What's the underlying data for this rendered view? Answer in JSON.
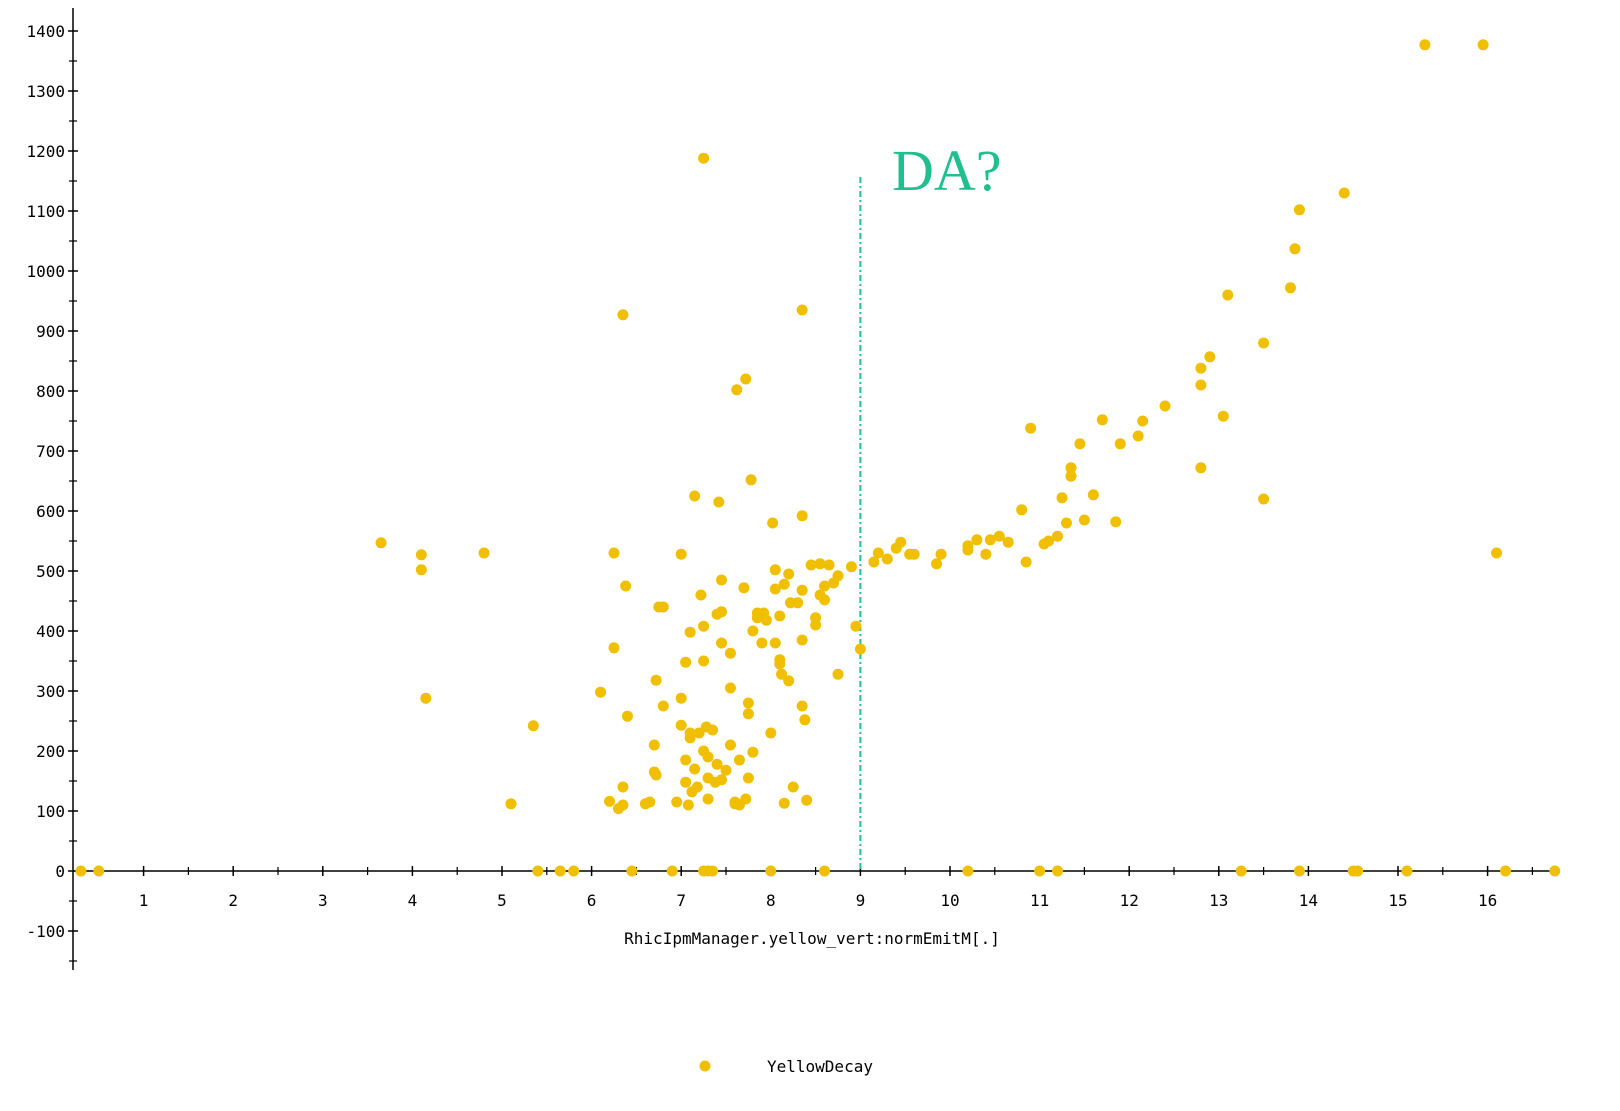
{
  "chart_data": {
    "type": "scatter",
    "title": "",
    "xlabel": "RhicIpmManager.yellow_vert:normEmitM[.]",
    "ylabel": "",
    "xlim": [
      0.1,
      16.8
    ],
    "ylim": [
      -150,
      1430
    ],
    "x_ticks": [
      1,
      2,
      3,
      4,
      5,
      6,
      7,
      8,
      9,
      10,
      11,
      12,
      13,
      14,
      15,
      16
    ],
    "y_ticks": [
      -100,
      0,
      100,
      200,
      300,
      400,
      500,
      600,
      700,
      800,
      900,
      1000,
      1100,
      1200,
      1300,
      1400
    ],
    "grid": false,
    "legend_position": "bottom-center",
    "annotation": {
      "text": "DA?",
      "x": 9,
      "color": "#1fbf8f"
    },
    "series": [
      {
        "name": "YellowDecay",
        "color": "#f0c000",
        "points": [
          [
            0.3,
            0
          ],
          [
            0.5,
            0
          ],
          [
            5.4,
            0
          ],
          [
            5.65,
            0
          ],
          [
            5.8,
            0
          ],
          [
            6.45,
            0
          ],
          [
            6.9,
            0
          ],
          [
            7.25,
            0
          ],
          [
            7.3,
            0
          ],
          [
            7.35,
            0
          ],
          [
            8.0,
            0
          ],
          [
            8.6,
            0
          ],
          [
            10.2,
            0
          ],
          [
            11.0,
            0
          ],
          [
            11.2,
            0
          ],
          [
            13.25,
            0
          ],
          [
            13.9,
            0
          ],
          [
            14.5,
            0
          ],
          [
            14.55,
            0
          ],
          [
            15.1,
            0
          ],
          [
            16.2,
            0
          ],
          [
            16.75,
            0
          ],
          [
            3.65,
            547
          ],
          [
            4.1,
            527
          ],
          [
            4.1,
            502
          ],
          [
            4.15,
            288
          ],
          [
            4.8,
            530
          ],
          [
            5.1,
            112
          ],
          [
            5.35,
            242
          ],
          [
            6.1,
            298
          ],
          [
            6.2,
            116
          ],
          [
            6.25,
            530
          ],
          [
            6.25,
            372
          ],
          [
            6.3,
            104
          ],
          [
            6.35,
            927
          ],
          [
            6.35,
            110
          ],
          [
            6.35,
            140
          ],
          [
            6.38,
            475
          ],
          [
            6.4,
            258
          ],
          [
            6.6,
            112
          ],
          [
            6.65,
            115
          ],
          [
            6.7,
            210
          ],
          [
            6.7,
            165
          ],
          [
            6.72,
            160
          ],
          [
            6.72,
            318
          ],
          [
            6.75,
            440
          ],
          [
            6.8,
            440
          ],
          [
            6.8,
            275
          ],
          [
            6.95,
            115
          ],
          [
            7.0,
            528
          ],
          [
            7.0,
            288
          ],
          [
            7.0,
            243
          ],
          [
            7.05,
            348
          ],
          [
            7.05,
            185
          ],
          [
            7.05,
            148
          ],
          [
            7.08,
            110
          ],
          [
            7.1,
            230
          ],
          [
            7.1,
            222
          ],
          [
            7.1,
            398
          ],
          [
            7.12,
            132
          ],
          [
            7.15,
            170
          ],
          [
            7.15,
            625
          ],
          [
            7.18,
            140
          ],
          [
            7.2,
            230
          ],
          [
            7.22,
            460
          ],
          [
            7.25,
            1188
          ],
          [
            7.25,
            350
          ],
          [
            7.25,
            408
          ],
          [
            7.25,
            200
          ],
          [
            7.28,
            240
          ],
          [
            7.3,
            120
          ],
          [
            7.3,
            190
          ],
          [
            7.3,
            155
          ],
          [
            7.35,
            235
          ],
          [
            7.38,
            148
          ],
          [
            7.4,
            178
          ],
          [
            7.4,
            428
          ],
          [
            7.42,
            615
          ],
          [
            7.45,
            485
          ],
          [
            7.45,
            380
          ],
          [
            7.45,
            432
          ],
          [
            7.45,
            152
          ],
          [
            7.5,
            168
          ],
          [
            7.55,
            363
          ],
          [
            7.55,
            305
          ],
          [
            7.55,
            210
          ],
          [
            7.6,
            115
          ],
          [
            7.6,
            112
          ],
          [
            7.62,
            802
          ],
          [
            7.65,
            110
          ],
          [
            7.65,
            185
          ],
          [
            7.7,
            472
          ],
          [
            7.72,
            820
          ],
          [
            7.72,
            120
          ],
          [
            7.75,
            262
          ],
          [
            7.75,
            280
          ],
          [
            7.75,
            155
          ],
          [
            7.78,
            652
          ],
          [
            7.8,
            400
          ],
          [
            7.8,
            198
          ],
          [
            7.85,
            430
          ],
          [
            7.85,
            422
          ],
          [
            7.9,
            380
          ],
          [
            7.92,
            430
          ],
          [
            7.95,
            418
          ],
          [
            8.0,
            230
          ],
          [
            8.02,
            580
          ],
          [
            8.05,
            380
          ],
          [
            8.05,
            502
          ],
          [
            8.05,
            470
          ],
          [
            8.1,
            425
          ],
          [
            8.1,
            352
          ],
          [
            8.1,
            345
          ],
          [
            8.12,
            328
          ],
          [
            8.15,
            478
          ],
          [
            8.15,
            113
          ],
          [
            8.2,
            495
          ],
          [
            8.2,
            317
          ],
          [
            8.22,
            447
          ],
          [
            8.25,
            140
          ],
          [
            8.3,
            447
          ],
          [
            8.35,
            935
          ],
          [
            8.35,
            592
          ],
          [
            8.35,
            468
          ],
          [
            8.35,
            385
          ],
          [
            8.35,
            275
          ],
          [
            8.38,
            252
          ],
          [
            8.4,
            118
          ],
          [
            8.45,
            510
          ],
          [
            8.5,
            422
          ],
          [
            8.5,
            410
          ],
          [
            8.55,
            512
          ],
          [
            8.55,
            460
          ],
          [
            8.6,
            475
          ],
          [
            8.6,
            452
          ],
          [
            8.65,
            510
          ],
          [
            8.7,
            480
          ],
          [
            8.75,
            492
          ],
          [
            8.75,
            328
          ],
          [
            8.9,
            507
          ],
          [
            8.95,
            408
          ],
          [
            9.0,
            370
          ],
          [
            9.15,
            515
          ],
          [
            9.2,
            530
          ],
          [
            9.3,
            520
          ],
          [
            9.4,
            538
          ],
          [
            9.45,
            548
          ],
          [
            9.55,
            528
          ],
          [
            9.6,
            528
          ],
          [
            9.85,
            512
          ],
          [
            9.9,
            528
          ],
          [
            10.2,
            542
          ],
          [
            10.2,
            535
          ],
          [
            10.3,
            552
          ],
          [
            10.4,
            528
          ],
          [
            10.45,
            552
          ],
          [
            10.55,
            558
          ],
          [
            10.65,
            548
          ],
          [
            10.8,
            602
          ],
          [
            10.85,
            515
          ],
          [
            10.9,
            738
          ],
          [
            11.05,
            545
          ],
          [
            11.1,
            550
          ],
          [
            11.2,
            558
          ],
          [
            11.25,
            622
          ],
          [
            11.3,
            580
          ],
          [
            11.35,
            672
          ],
          [
            11.35,
            658
          ],
          [
            11.45,
            712
          ],
          [
            11.5,
            585
          ],
          [
            11.6,
            627
          ],
          [
            11.7,
            752
          ],
          [
            11.85,
            582
          ],
          [
            11.9,
            712
          ],
          [
            12.1,
            725
          ],
          [
            12.15,
            750
          ],
          [
            12.4,
            775
          ],
          [
            12.8,
            672
          ],
          [
            12.8,
            810
          ],
          [
            12.8,
            838
          ],
          [
            12.9,
            857
          ],
          [
            13.05,
            758
          ],
          [
            13.1,
            960
          ],
          [
            13.5,
            880
          ],
          [
            13.5,
            620
          ],
          [
            13.8,
            972
          ],
          [
            13.85,
            1037
          ],
          [
            13.9,
            1102
          ],
          [
            14.4,
            1130
          ],
          [
            15.3,
            1377
          ],
          [
            15.95,
            1377
          ],
          [
            16.1,
            530
          ]
        ]
      }
    ]
  }
}
